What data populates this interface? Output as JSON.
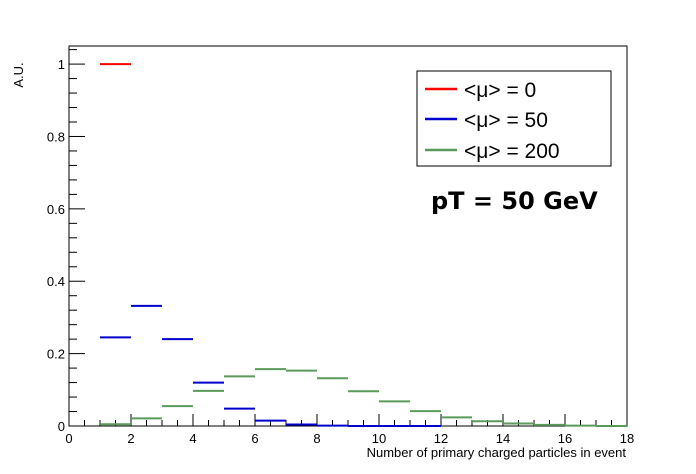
{
  "chart_data": {
    "type": "histogram",
    "title": "",
    "xlabel": "Number of primary charged particles in event",
    "ylabel": "A.U.",
    "xlim": [
      0,
      18
    ],
    "ylim": [
      0,
      1.05
    ],
    "xticks": [
      0,
      2,
      4,
      6,
      8,
      10,
      12,
      14,
      16,
      18
    ],
    "yticks": [
      0,
      0.2,
      0.4,
      0.6,
      0.8,
      1
    ],
    "ytick_labels": [
      "0",
      "0.2",
      "0.4",
      "0.6",
      "0.8",
      "1"
    ],
    "grid": false,
    "legend_position": "top-right",
    "annotation": "pT = 50 GeV",
    "bin_edges": [
      1,
      2,
      3,
      4,
      5,
      6,
      7,
      8,
      9,
      10,
      11,
      12,
      13,
      14,
      15,
      16,
      17,
      18
    ],
    "series": [
      {
        "name": "<μ> = 0",
        "color": "#ff0000",
        "values": [
          1.0
        ]
      },
      {
        "name": "<μ> = 50",
        "color": "#0000cc",
        "values": [
          0.245,
          0.332,
          0.24,
          0.12,
          0.048,
          0.015,
          0.004,
          0.001,
          0.0,
          0.0,
          0.0
        ]
      },
      {
        "name": "<μ> = 200",
        "color": "#5a9a5a",
        "values": [
          0.005,
          0.021,
          0.055,
          0.097,
          0.137,
          0.157,
          0.153,
          0.132,
          0.096,
          0.068,
          0.041,
          0.024,
          0.013,
          0.007,
          0.003,
          0.001,
          0.0
        ]
      }
    ]
  }
}
